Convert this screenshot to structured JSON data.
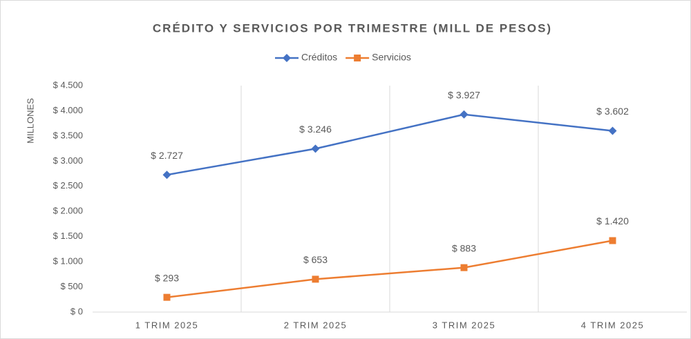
{
  "chart_data": {
    "type": "line",
    "title": "CRÉDITO Y SERVICIOS POR TRIMESTRE (MILL DE PESOS)",
    "y_label": "MILLONES",
    "categories": [
      "1 TRIM 2025",
      "2 TRIM 2025",
      "3 TRIM 2025",
      "4 TRIM 2025"
    ],
    "series": [
      {
        "name": "Créditos",
        "color": "#4472c4",
        "marker": "diamond",
        "values": [
          2727,
          3246,
          3927,
          3602
        ],
        "value_labels": [
          "$ 2.727",
          "$ 3.246",
          "$ 3.927",
          "$ 3.602"
        ]
      },
      {
        "name": "Servicios",
        "color": "#ed7d31",
        "marker": "square",
        "values": [
          293,
          653,
          883,
          1420
        ],
        "value_labels": [
          "$ 293",
          "$ 653",
          "$ 883",
          "$ 1.420"
        ]
      }
    ],
    "ylim": [
      0,
      4500
    ],
    "yticks": [
      {
        "value": 0,
        "label": "$ 0"
      },
      {
        "value": 500,
        "label": "$ 500"
      },
      {
        "value": 1000,
        "label": "$ 1.000"
      },
      {
        "value": 1500,
        "label": "$ 1.500"
      },
      {
        "value": 2000,
        "label": "$ 2.000"
      },
      {
        "value": 2500,
        "label": "$ 2.500"
      },
      {
        "value": 3000,
        "label": "$ 3.000"
      },
      {
        "value": 3500,
        "label": "$ 3.500"
      },
      {
        "value": 4000,
        "label": "$ 4.000"
      },
      {
        "value": 4500,
        "label": "$ 4.500"
      }
    ],
    "grid": "vertical",
    "legend": "top"
  }
}
